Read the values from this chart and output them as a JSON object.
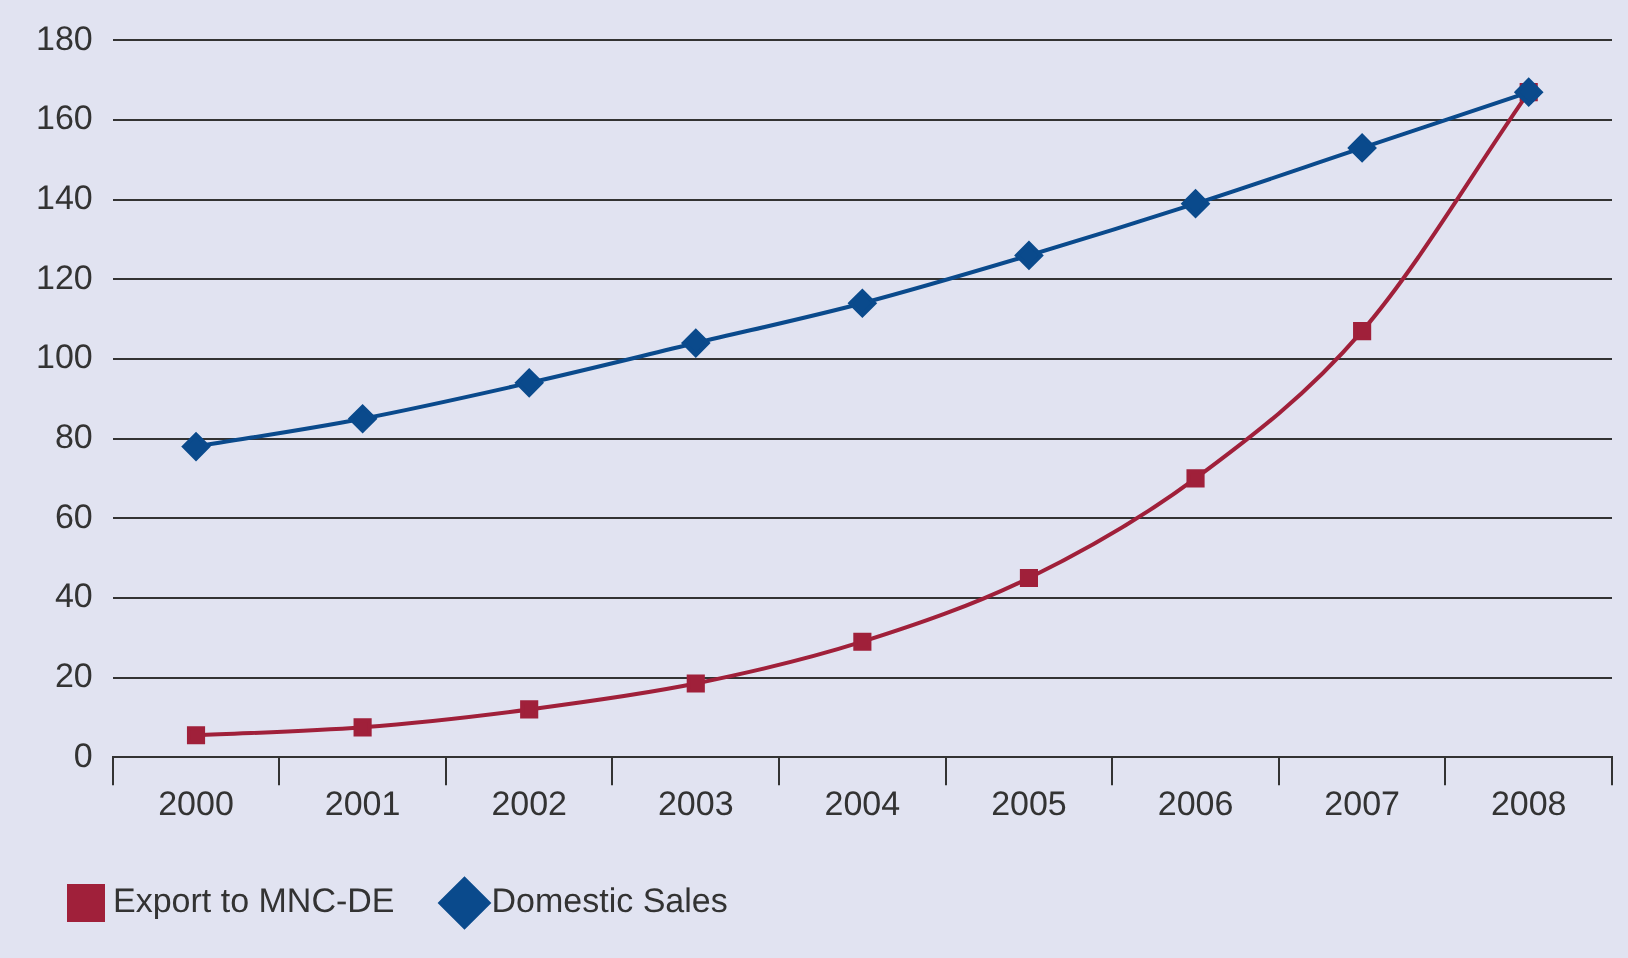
{
  "chart_data": {
    "type": "line",
    "categories": [
      "2000",
      "2001",
      "2002",
      "2003",
      "2004",
      "2005",
      "2006",
      "2007",
      "2008"
    ],
    "series": [
      {
        "name": "Export to MNC-DE",
        "color": "#a0203a",
        "marker": "square",
        "values": [
          5.5,
          7.5,
          12,
          18.5,
          29,
          45,
          70,
          107,
          167
        ]
      },
      {
        "name": "Domestic Sales",
        "color": "#0a4a8c",
        "marker": "diamond",
        "values": [
          78,
          85,
          94,
          104,
          114,
          126,
          139,
          153,
          167
        ]
      }
    ],
    "ylim": [
      0,
      180
    ],
    "yticks": [
      0,
      20,
      40,
      60,
      80,
      100,
      120,
      140,
      160,
      180
    ],
    "grid": "y",
    "legend": "bottom left"
  }
}
